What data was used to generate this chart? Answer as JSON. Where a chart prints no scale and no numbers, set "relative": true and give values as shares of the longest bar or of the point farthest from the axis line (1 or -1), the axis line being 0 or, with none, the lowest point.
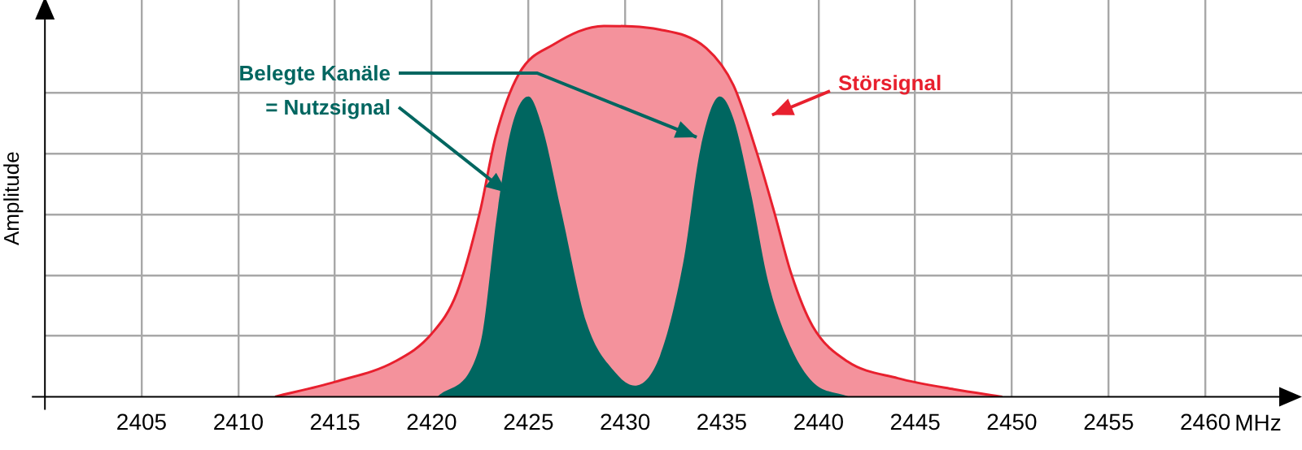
{
  "chart_data": {
    "type": "area",
    "relative": true,
    "ylabel": "Amplitude",
    "xlabel": "MHz",
    "xlim": [
      2400,
      2465
    ],
    "xticks": [
      2405,
      2410,
      2415,
      2420,
      2425,
      2430,
      2435,
      2440,
      2445,
      2450,
      2455,
      2460
    ],
    "grid": true,
    "series": [
      {
        "name": "Störsignal",
        "color": "#f4929c",
        "x": [
          2411.9,
          2415,
          2418.1,
          2420,
          2421.3,
          2422.5,
          2423.3,
          2424.5,
          2426.3,
          2428.9,
          2431.8,
          2434.2,
          2435.6,
          2436.8,
          2437.7,
          2438.6,
          2439.7,
          2441.5,
          2444.1,
          2447,
          2449.5
        ],
        "values": [
          0,
          0.04,
          0.095,
          0.17,
          0.28,
          0.5,
          0.7,
          0.87,
          0.95,
          1,
          0.99,
          0.94,
          0.84,
          0.66,
          0.5,
          0.33,
          0.19,
          0.095,
          0.05,
          0.02,
          0
        ]
      },
      {
        "name": "Belegte Kanäle = Nutzsignal",
        "color": "#006660",
        "x": [
          2420.3,
          2422.5,
          2423.4,
          2424.1,
          2425,
          2425.7,
          2426.7,
          2428,
          2429.5,
          2430.5,
          2431.8,
          2433,
          2433.9,
          2434.9,
          2435.6,
          2436.5,
          2437.4,
          2438.6,
          2439.7,
          2441.6
        ],
        "values": [
          0,
          0.14,
          0.5,
          0.72,
          0.81,
          0.73,
          0.5,
          0.2,
          0.065,
          0.03,
          0.11,
          0.36,
          0.67,
          0.81,
          0.75,
          0.55,
          0.31,
          0.13,
          0.04,
          0
        ]
      }
    ]
  }
}
